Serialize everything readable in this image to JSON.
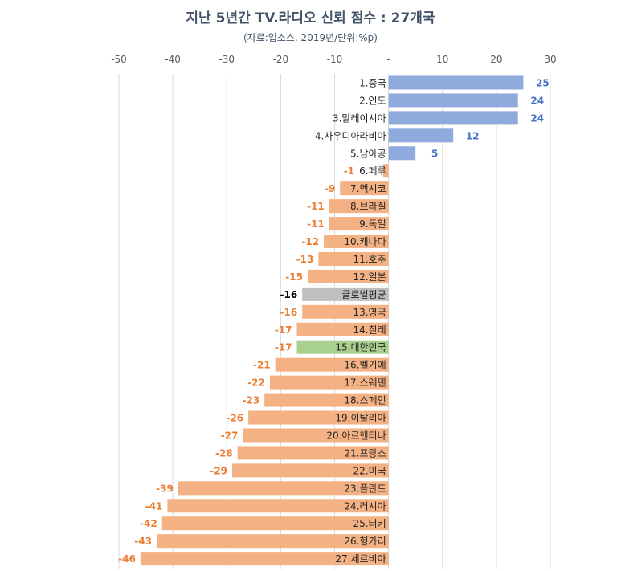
{
  "chart_data": {
    "type": "bar",
    "orientation": "horizontal",
    "title": "지난 5년간 TV.라디오 신뢰 점수 : 27개국",
    "subtitle": "(자료:입소스, 2019년/단위:%p)",
    "xlim": [
      -50,
      30
    ],
    "x_ticks": [
      "-50",
      "-40",
      "-30",
      "-20",
      "-10",
      "-",
      "10",
      "20",
      "30"
    ],
    "grid": "vertical",
    "categories": [
      "1.중국",
      "2.인도",
      "3.말레이시아",
      "4.사우디아라비아",
      "5.남아공",
      "6.페루",
      "7.멕시코",
      "8.브라질",
      "9.독일",
      "10.캐나다",
      "11.호주",
      "12.일본",
      "글로벌평균",
      "13.영국",
      "14.칠레",
      "15.대한민국",
      "16.벨기에",
      "17.스웨덴",
      "18.스페인",
      "19.이탈리아",
      "20.아르헨티나",
      "21.프랑스",
      "22.미국",
      "23.폴란드",
      "24.러시아",
      "25.터키",
      "26.헝가리",
      "27.세르비아"
    ],
    "values": [
      25,
      24,
      24,
      12,
      5,
      -1,
      -9,
      -11,
      -11,
      -12,
      -13,
      -15,
      -16,
      -16,
      -17,
      -17,
      -21,
      -22,
      -23,
      -26,
      -27,
      -28,
      -29,
      -39,
      -41,
      -42,
      -43,
      -46
    ],
    "value_labels": [
      "25",
      "24",
      "24",
      "12",
      "5",
      "-1",
      "-9",
      "-11",
      "-11",
      "-12",
      "-13",
      "-15",
      "-16",
      "-16",
      "-17",
      "-17",
      "-21",
      "-22",
      "-23",
      "-26",
      "-27",
      "-28",
      "-29",
      "-39",
      "-41",
      "-42",
      "-43",
      "-46"
    ],
    "colors": {
      "positive": "#8faadc",
      "negative": "#f4b183",
      "global_average": "#bfbfbf",
      "korea": "#a9d18e",
      "positive_label": "#4472c4",
      "negative_label": "#ed7d31",
      "average_label": "#000000",
      "grid": "#d9d9d9"
    },
    "highlight": {
      "global_average": "글로벌평균",
      "korea": "15.대한민국"
    }
  }
}
